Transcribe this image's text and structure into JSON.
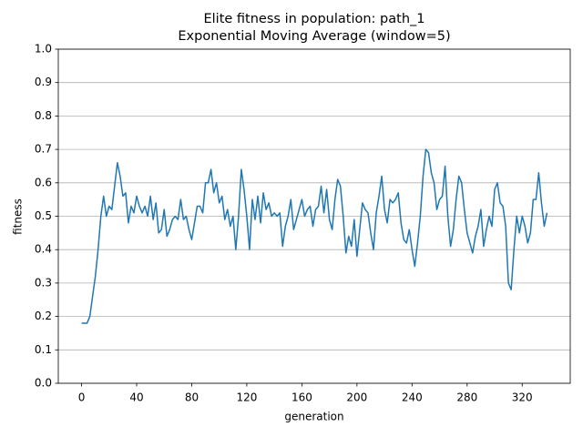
{
  "chart_data": {
    "type": "line",
    "title": "Elite fitness in population: path_1",
    "subtitle": "Exponential Moving Average (window=5)",
    "x_label": "generation",
    "y_label": "fitness",
    "grid": "y",
    "x": [
      0,
      2,
      4,
      6,
      8,
      10,
      12,
      14,
      16,
      18,
      20,
      22,
      24,
      26,
      28,
      30,
      32,
      34,
      36,
      38,
      40,
      42,
      44,
      46,
      48,
      50,
      52,
      54,
      56,
      58,
      60,
      62,
      64,
      66,
      68,
      70,
      72,
      74,
      76,
      78,
      80,
      82,
      84,
      86,
      88,
      90,
      92,
      94,
      96,
      98,
      100,
      102,
      104,
      106,
      108,
      110,
      112,
      114,
      116,
      118,
      120,
      122,
      124,
      126,
      128,
      130,
      132,
      134,
      136,
      138,
      140,
      142,
      144,
      146,
      148,
      150,
      152,
      154,
      156,
      158,
      160,
      162,
      164,
      166,
      168,
      170,
      172,
      174,
      176,
      178,
      180,
      182,
      184,
      186,
      188,
      190,
      192,
      194,
      196,
      198,
      200,
      202,
      204,
      206,
      208,
      210,
      212,
      214,
      216,
      218,
      220,
      222,
      224,
      226,
      228,
      230,
      232,
      234,
      236,
      238,
      240,
      242,
      244,
      246,
      248,
      250,
      252,
      254,
      256,
      258,
      260,
      262,
      264,
      266,
      268,
      270,
      272,
      274,
      276,
      278,
      280,
      282,
      284,
      286,
      288,
      290,
      292,
      294,
      296,
      298,
      300,
      302,
      304,
      306,
      308,
      310,
      312,
      314,
      316,
      318,
      320,
      322,
      324,
      326,
      328,
      330,
      332,
      334,
      336,
      338
    ],
    "series": [
      {
        "name": "fitness",
        "color": "#1f77b4",
        "values": [
          0.18,
          0.18,
          0.18,
          0.2,
          0.26,
          0.32,
          0.4,
          0.5,
          0.56,
          0.5,
          0.53,
          0.52,
          0.59,
          0.66,
          0.62,
          0.56,
          0.57,
          0.48,
          0.53,
          0.51,
          0.56,
          0.53,
          0.51,
          0.53,
          0.5,
          0.56,
          0.49,
          0.54,
          0.45,
          0.46,
          0.52,
          0.44,
          0.46,
          0.49,
          0.5,
          0.49,
          0.55,
          0.49,
          0.5,
          0.46,
          0.43,
          0.48,
          0.53,
          0.53,
          0.51,
          0.6,
          0.6,
          0.64,
          0.57,
          0.6,
          0.54,
          0.56,
          0.49,
          0.52,
          0.47,
          0.5,
          0.4,
          0.5,
          0.64,
          0.58,
          0.5,
          0.4,
          0.55,
          0.49,
          0.56,
          0.48,
          0.57,
          0.52,
          0.54,
          0.5,
          0.51,
          0.5,
          0.51,
          0.41,
          0.47,
          0.5,
          0.55,
          0.46,
          0.49,
          0.52,
          0.55,
          0.5,
          0.52,
          0.53,
          0.47,
          0.52,
          0.53,
          0.59,
          0.51,
          0.58,
          0.49,
          0.46,
          0.55,
          0.61,
          0.59,
          0.5,
          0.39,
          0.44,
          0.41,
          0.49,
          0.38,
          0.46,
          0.54,
          0.52,
          0.51,
          0.45,
          0.4,
          0.51,
          0.56,
          0.62,
          0.52,
          0.48,
          0.55,
          0.54,
          0.55,
          0.57,
          0.48,
          0.43,
          0.42,
          0.46,
          0.4,
          0.35,
          0.42,
          0.5,
          0.62,
          0.7,
          0.69,
          0.63,
          0.6,
          0.52,
          0.55,
          0.56,
          0.65,
          0.5,
          0.41,
          0.46,
          0.55,
          0.62,
          0.6,
          0.52,
          0.45,
          0.42,
          0.39,
          0.44,
          0.47,
          0.52,
          0.41,
          0.46,
          0.5,
          0.47,
          0.58,
          0.6,
          0.54,
          0.53,
          0.47,
          0.3,
          0.28,
          0.4,
          0.5,
          0.45,
          0.5,
          0.47,
          0.42,
          0.45,
          0.55,
          0.55,
          0.63,
          0.54,
          0.47,
          0.51
        ]
      }
    ],
    "xlim": [
      -16.9,
      354.9
    ],
    "xticks": [
      0,
      40,
      80,
      120,
      160,
      200,
      240,
      280,
      320
    ],
    "ylim": [
      0,
      1
    ],
    "yticks": [
      {
        "value": 0,
        "label": "0.0"
      },
      {
        "value": 0.1,
        "label": "0.1"
      },
      {
        "value": 0.2,
        "label": "0.2"
      },
      {
        "value": 0.3,
        "label": "0.3"
      },
      {
        "value": 0.4,
        "label": "0.4"
      },
      {
        "value": 0.5,
        "label": "0.5"
      },
      {
        "value": 0.6,
        "label": "0.6"
      },
      {
        "value": 0.7,
        "label": "0.7"
      },
      {
        "value": 0.8,
        "label": "0.8"
      },
      {
        "value": 0.9,
        "label": "0.9"
      },
      {
        "value": 1,
        "label": "1.0"
      }
    ]
  }
}
